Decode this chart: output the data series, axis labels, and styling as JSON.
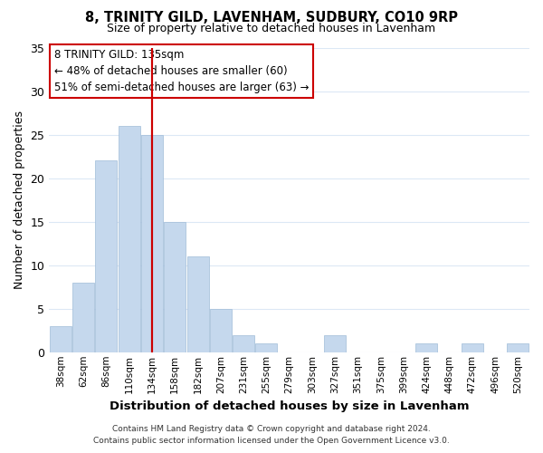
{
  "title": "8, TRINITY GILD, LAVENHAM, SUDBURY, CO10 9RP",
  "subtitle": "Size of property relative to detached houses in Lavenham",
  "xlabel": "Distribution of detached houses by size in Lavenham",
  "ylabel": "Number of detached properties",
  "bin_labels": [
    "38sqm",
    "62sqm",
    "86sqm",
    "110sqm",
    "134sqm",
    "158sqm",
    "182sqm",
    "207sqm",
    "231sqm",
    "255sqm",
    "279sqm",
    "303sqm",
    "327sqm",
    "351sqm",
    "375sqm",
    "399sqm",
    "424sqm",
    "448sqm",
    "472sqm",
    "496sqm",
    "520sqm"
  ],
  "bar_values": [
    3,
    8,
    22,
    26,
    25,
    15,
    11,
    5,
    2,
    1,
    0,
    0,
    2,
    0,
    0,
    0,
    1,
    0,
    1,
    0,
    1
  ],
  "highlight_index": 4,
  "bar_color": "#c5d8ed",
  "highlight_color": "#c5d8ed",
  "marker_line_color": "#cc0000",
  "ylim": [
    0,
    35
  ],
  "yticks": [
    0,
    5,
    10,
    15,
    20,
    25,
    30,
    35
  ],
  "annotation_title": "8 TRINITY GILD: 135sqm",
  "annotation_line1": "← 48% of detached houses are smaller (60)",
  "annotation_line2": "51% of semi-detached houses are larger (63) →",
  "annotation_box_color": "#ffffff",
  "annotation_box_edge": "#cc0000",
  "footer_line1": "Contains HM Land Registry data © Crown copyright and database right 2024.",
  "footer_line2": "Contains public sector information licensed under the Open Government Licence v3.0.",
  "background_color": "#ffffff",
  "grid_color": "#dce8f5"
}
